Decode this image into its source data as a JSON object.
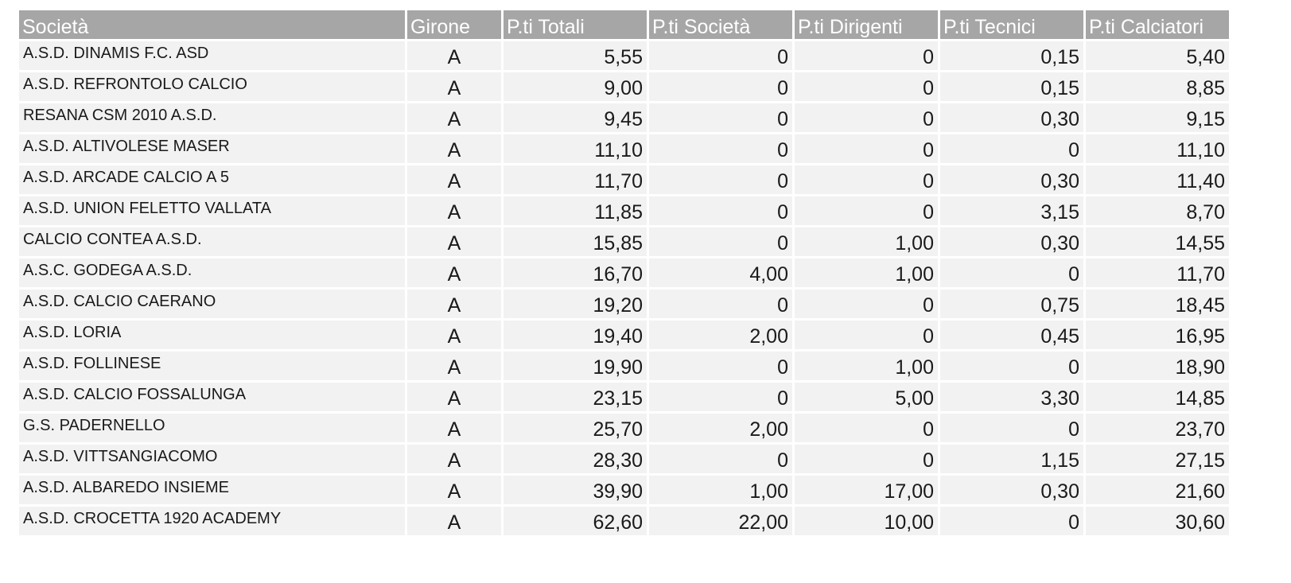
{
  "table": {
    "headers": [
      "Società",
      "Girone",
      "P.ti Totali",
      "P.ti Società",
      "P.ti Dirigenti",
      "P.ti Tecnici",
      "P.ti Calciatori"
    ],
    "rows": [
      [
        "A.S.D. DINAMIS F.C. ASD",
        "A",
        "5,55",
        "0",
        "0",
        "0,15",
        "5,40"
      ],
      [
        "A.S.D. REFRONTOLO CALCIO",
        "A",
        "9,00",
        "0",
        "0",
        "0,15",
        "8,85"
      ],
      [
        " RESANA CSM 2010 A.S.D.",
        "A",
        "9,45",
        "0",
        "0",
        "0,30",
        "9,15"
      ],
      [
        "A.S.D. ALTIVOLESE MASER",
        "A",
        "11,10",
        "0",
        "0",
        "0",
        "11,10"
      ],
      [
        "A.S.D. ARCADE CALCIO A 5",
        "A",
        "11,70",
        "0",
        "0",
        "0,30",
        "11,40"
      ],
      [
        "A.S.D. UNION FELETTO VALLATA",
        "A",
        "11,85",
        "0",
        "0",
        "3,15",
        "8,70"
      ],
      [
        " CALCIO CONTEA A.S.D.",
        "A",
        "15,85",
        "0",
        "1,00",
        "0,30",
        "14,55"
      ],
      [
        "A.S.C. GODEGA A.S.D.",
        "A",
        "16,70",
        "4,00",
        "1,00",
        "0",
        "11,70"
      ],
      [
        "A.S.D. CALCIO CAERANO",
        "A",
        "19,20",
        "0",
        "0",
        "0,75",
        "18,45"
      ],
      [
        "A.S.D. LORIA",
        "A",
        "19,40",
        "2,00",
        "0",
        "0,45",
        "16,95"
      ],
      [
        "A.S.D. FOLLINESE",
        "A",
        "19,90",
        "0",
        "1,00",
        "0",
        "18,90"
      ],
      [
        "A.S.D. CALCIO FOSSALUNGA",
        "A",
        "23,15",
        "0",
        "5,00",
        "3,30",
        "14,85"
      ],
      [
        "G.S. PADERNELLO",
        "A",
        "25,70",
        "2,00",
        "0",
        "0",
        "23,70"
      ],
      [
        "A.S.D. VITTSANGIACOMO",
        "A",
        "28,30",
        "0",
        "0",
        "1,15",
        "27,15"
      ],
      [
        "A.S.D. ALBAREDO INSIEME",
        "A",
        "39,90",
        "1,00",
        "17,00",
        "0,30",
        "21,60"
      ],
      [
        "A.S.D. CROCETTA 1920 ACADEMY",
        "A",
        "62,60",
        "22,00",
        "10,00",
        "0",
        "30,60"
      ]
    ]
  }
}
